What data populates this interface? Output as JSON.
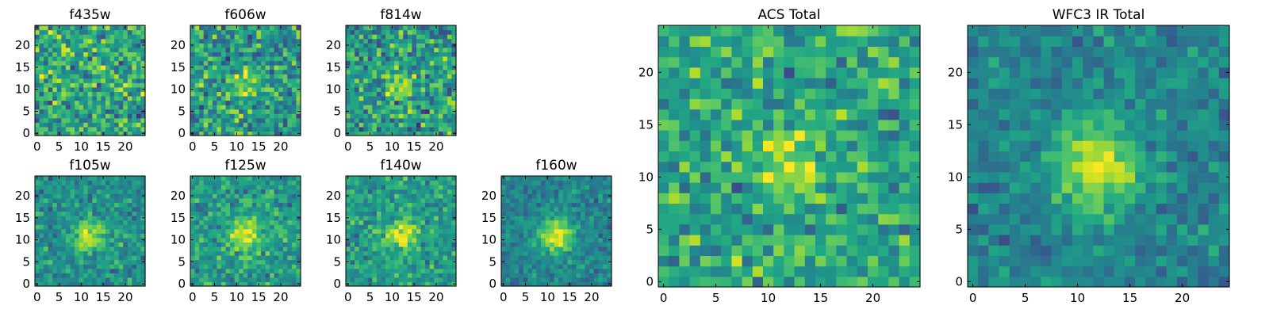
{
  "chart_data": [
    {
      "type": "heatmap",
      "title": "f435w",
      "xticks": [
        "0",
        "5",
        "10",
        "15",
        "20"
      ],
      "yticks": [
        "0",
        "5",
        "10",
        "15",
        "20"
      ],
      "xlim": [
        -0.5,
        24.5
      ],
      "ylim": [
        -0.5,
        24.5
      ],
      "grid_size": 25,
      "colormap": "viridis",
      "source": {
        "x": 12,
        "y": 11,
        "strength": 0.05,
        "width": 2.5
      },
      "noise": 0.2,
      "base": 0.6,
      "seed": 11
    },
    {
      "type": "heatmap",
      "title": "f606w",
      "xticks": [
        "0",
        "5",
        "10",
        "15",
        "20"
      ],
      "yticks": [
        "0",
        "5",
        "10",
        "15",
        "20"
      ],
      "xlim": [
        -0.5,
        24.5
      ],
      "ylim": [
        -0.5,
        24.5
      ],
      "grid_size": 25,
      "colormap": "viridis",
      "source": {
        "x": 12,
        "y": 11,
        "strength": 0.3,
        "width": 2.0
      },
      "noise": 0.2,
      "base": 0.55,
      "seed": 23
    },
    {
      "type": "heatmap",
      "title": "f814w",
      "xticks": [
        "0",
        "5",
        "10",
        "15",
        "20"
      ],
      "yticks": [
        "0",
        "5",
        "10",
        "15",
        "20"
      ],
      "xlim": [
        -0.5,
        24.5
      ],
      "ylim": [
        -0.5,
        24.5
      ],
      "grid_size": 25,
      "colormap": "viridis",
      "source": {
        "x": 12,
        "y": 11,
        "strength": 0.33,
        "width": 2.0
      },
      "noise": 0.2,
      "base": 0.55,
      "seed": 37
    },
    {
      "type": "heatmap",
      "title": "f105w",
      "xticks": [
        "0",
        "5",
        "10",
        "15",
        "20"
      ],
      "yticks": [
        "0",
        "5",
        "10",
        "15",
        "20"
      ],
      "xlim": [
        -0.5,
        24.5
      ],
      "ylim": [
        -0.5,
        24.5
      ],
      "grid_size": 25,
      "colormap": "viridis",
      "source": {
        "x": 12,
        "y": 11,
        "strength": 0.4,
        "width": 2.5
      },
      "noise": 0.13,
      "base": 0.5,
      "seed": 41
    },
    {
      "type": "heatmap",
      "title": "f125w",
      "xticks": [
        "0",
        "5",
        "10",
        "15",
        "20"
      ],
      "yticks": [
        "0",
        "5",
        "10",
        "15",
        "20"
      ],
      "xlim": [
        -0.5,
        24.5
      ],
      "ylim": [
        -0.5,
        24.5
      ],
      "grid_size": 25,
      "colormap": "viridis",
      "source": {
        "x": 12,
        "y": 11,
        "strength": 0.4,
        "width": 2.5
      },
      "noise": 0.13,
      "base": 0.55,
      "seed": 53
    },
    {
      "type": "heatmap",
      "title": "f140w",
      "xticks": [
        "0",
        "5",
        "10",
        "15",
        "20"
      ],
      "yticks": [
        "0",
        "5",
        "10",
        "15",
        "20"
      ],
      "xlim": [
        -0.5,
        24.5
      ],
      "ylim": [
        -0.5,
        24.5
      ],
      "grid_size": 25,
      "colormap": "viridis",
      "source": {
        "x": 12,
        "y": 11,
        "strength": 0.4,
        "width": 2.5
      },
      "noise": 0.13,
      "base": 0.55,
      "seed": 67
    },
    {
      "type": "heatmap",
      "title": "f160w",
      "xticks": [
        "0",
        "5",
        "10",
        "15",
        "20"
      ],
      "yticks": [
        "0",
        "5",
        "10",
        "15",
        "20"
      ],
      "xlim": [
        -0.5,
        24.5
      ],
      "ylim": [
        -0.5,
        24.5
      ],
      "grid_size": 25,
      "colormap": "viridis",
      "source": {
        "x": 12,
        "y": 11,
        "strength": 0.45,
        "width": 2.8
      },
      "noise": 0.1,
      "base": 0.45,
      "seed": 79
    },
    {
      "type": "heatmap",
      "title": "ACS Total",
      "xticks": [
        "0",
        "5",
        "10",
        "15",
        "20"
      ],
      "yticks": [
        "0",
        "5",
        "10",
        "15",
        "20"
      ],
      "xlim": [
        -0.5,
        24.5
      ],
      "ylim": [
        -0.5,
        24.5
      ],
      "grid_size": 25,
      "colormap": "viridis",
      "source": {
        "x": 12,
        "y": 11,
        "strength": 0.35,
        "width": 2.0
      },
      "noise": 0.16,
      "base": 0.6,
      "seed": 97
    },
    {
      "type": "heatmap",
      "title": "WFC3 IR Total",
      "xticks": [
        "0",
        "5",
        "10",
        "15",
        "20"
      ],
      "yticks": [
        "0",
        "5",
        "10",
        "15",
        "20"
      ],
      "xlim": [
        -0.5,
        24.5
      ],
      "ylim": [
        -0.5,
        24.5
      ],
      "grid_size": 25,
      "colormap": "viridis",
      "source": {
        "x": 12,
        "y": 11,
        "strength": 0.45,
        "width": 2.8
      },
      "noise": 0.1,
      "base": 0.45,
      "seed": 113
    }
  ]
}
